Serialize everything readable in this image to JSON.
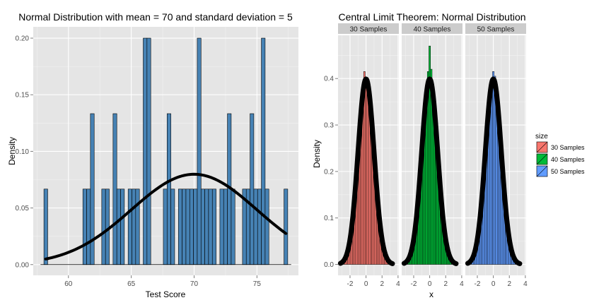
{
  "chart_data": [
    {
      "type": "bar",
      "title": "Normal Distribution with mean = 70 and standard deviation = 5",
      "xlabel": "Test Score",
      "ylabel": "Density",
      "xlim": [
        57.2,
        78.3
      ],
      "ylim": [
        -0.0095,
        0.21
      ],
      "xticks": [
        60,
        65,
        70,
        75
      ],
      "yticks": [
        0.0,
        0.05,
        0.1,
        0.15,
        0.2
      ],
      "ytick_labels": [
        "0.00",
        "0.05",
        "0.10",
        "0.15",
        "0.20"
      ],
      "bin_width": 0.3,
      "bar_color": "#4682b4",
      "bars": [
        {
          "x": 58.2,
          "y": 0.0667
        },
        {
          "x": 61.3,
          "y": 0.0667
        },
        {
          "x": 61.6,
          "y": 0.0667
        },
        {
          "x": 61.9,
          "y": 0.1333
        },
        {
          "x": 62.8,
          "y": 0.0667
        },
        {
          "x": 63.1,
          "y": 0.0667
        },
        {
          "x": 63.7,
          "y": 0.1333
        },
        {
          "x": 64.0,
          "y": 0.0667
        },
        {
          "x": 64.3,
          "y": 0.0667
        },
        {
          "x": 64.9,
          "y": 0.0667
        },
        {
          "x": 65.2,
          "y": 0.0667
        },
        {
          "x": 65.5,
          "y": 0.0667
        },
        {
          "x": 66.1,
          "y": 0.2
        },
        {
          "x": 66.4,
          "y": 0.2
        },
        {
          "x": 67.7,
          "y": 0.0667
        },
        {
          "x": 68.0,
          "y": 0.1333
        },
        {
          "x": 68.3,
          "y": 0.0667
        },
        {
          "x": 68.9,
          "y": 0.0667
        },
        {
          "x": 69.2,
          "y": 0.0667
        },
        {
          "x": 69.5,
          "y": 0.0667
        },
        {
          "x": 69.8,
          "y": 0.0667
        },
        {
          "x": 70.1,
          "y": 0.0667
        },
        {
          "x": 70.4,
          "y": 0.2
        },
        {
          "x": 70.7,
          "y": 0.0667
        },
        {
          "x": 71.0,
          "y": 0.0667
        },
        {
          "x": 71.3,
          "y": 0.0667
        },
        {
          "x": 71.6,
          "y": 0.0667
        },
        {
          "x": 72.2,
          "y": 0.0667
        },
        {
          "x": 72.5,
          "y": 0.0667
        },
        {
          "x": 72.8,
          "y": 0.1333
        },
        {
          "x": 73.1,
          "y": 0.0667
        },
        {
          "x": 74.0,
          "y": 0.0667
        },
        {
          "x": 74.3,
          "y": 0.0667
        },
        {
          "x": 74.6,
          "y": 0.1333
        },
        {
          "x": 74.9,
          "y": 0.0667
        },
        {
          "x": 75.2,
          "y": 0.0667
        },
        {
          "x": 75.5,
          "y": 0.2
        },
        {
          "x": 75.8,
          "y": 0.0667
        },
        {
          "x": 77.3,
          "y": 0.0667
        }
      ],
      "curve": {
        "mean": 70,
        "sd": 5,
        "x_range": [
          58.2,
          77.3
        ],
        "color": "#000000"
      }
    },
    {
      "type": "bar",
      "title": "Central Limit Theorem:  Normal Distribution",
      "xlabel": "x",
      "ylabel": "Density",
      "xlim": [
        -3.5,
        4.1
      ],
      "ylim": [
        -0.0235,
        0.493
      ],
      "xticks": [
        -2,
        0,
        2,
        4
      ],
      "yticks": [
        0.0,
        0.1,
        0.2,
        0.3,
        0.4
      ],
      "ytick_labels": [
        "0.0",
        "0.1",
        "0.2",
        "0.3",
        "0.4"
      ],
      "bin_width": 0.2,
      "legend": {
        "title": "size",
        "position": "right",
        "entries": [
          {
            "label": "30 Samples",
            "color": "#f8766d"
          },
          {
            "label": "40 Samples",
            "color": "#00ba38"
          },
          {
            "label": "50 Samples",
            "color": "#619cff"
          }
        ]
      },
      "panels": [
        {
          "strip": "30 Samples",
          "color": "#f8766d",
          "peaks": [
            {
              "x": -0.2,
              "y": 0.415
            },
            {
              "x": 0.0,
              "y": 0.4
            },
            {
              "x": 0.2,
              "y": 0.39
            }
          ],
          "curve": {
            "mean": 0,
            "sd": 1,
            "x_range": [
              -3.2,
              3.3
            ]
          }
        },
        {
          "strip": "40 Samples",
          "color": "#00ba38",
          "peaks": [
            {
              "x": -0.2,
              "y": 0.415
            },
            {
              "x": 0.0,
              "y": 0.47
            },
            {
              "x": 0.2,
              "y": 0.42
            }
          ],
          "curve": {
            "mean": 0,
            "sd": 1,
            "x_range": [
              -3.2,
              3.3
            ]
          }
        },
        {
          "strip": "50 Samples",
          "color": "#619cff",
          "peaks": [
            {
              "x": -0.2,
              "y": 0.395
            },
            {
              "x": 0.0,
              "y": 0.415
            },
            {
              "x": 0.2,
              "y": 0.405
            }
          ],
          "curve": {
            "mean": 0,
            "sd": 1,
            "x_range": [
              -3.2,
              3.3
            ]
          }
        }
      ]
    }
  ]
}
